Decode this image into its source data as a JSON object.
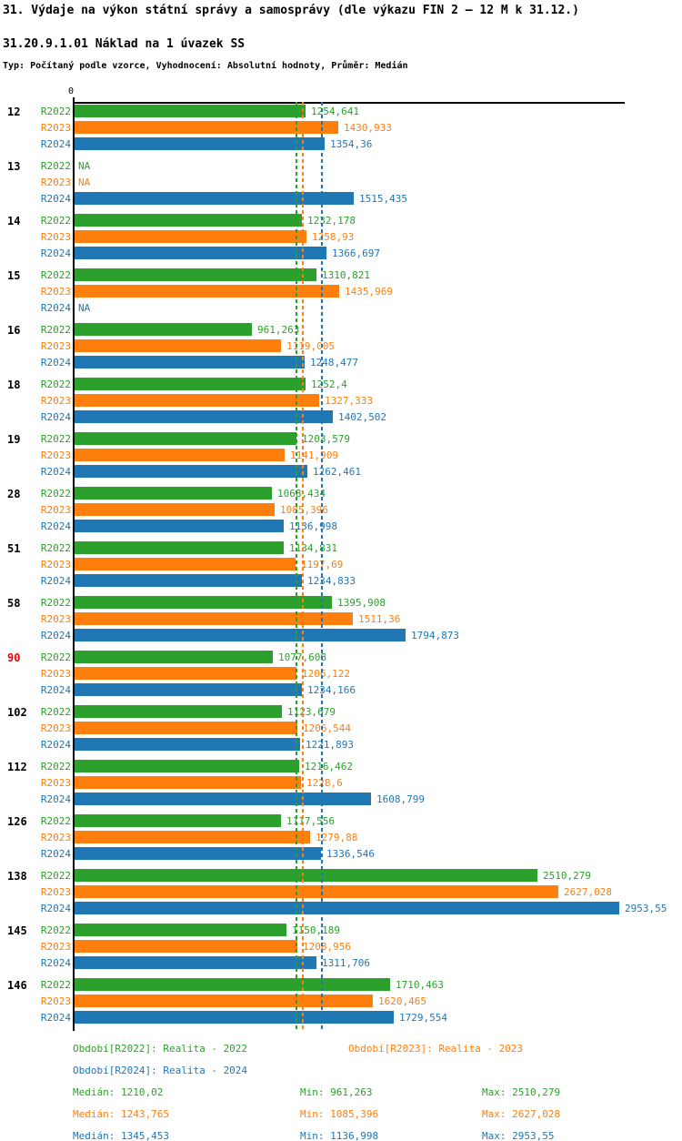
{
  "header": {
    "title": "31. Výdaje na výkon státní správy a samosprávy (dle výkazu FIN 2 – 12 M k 31.12.)",
    "subtitle": "31.20.9.1.01 Náklad na 1 úvazek SS",
    "type_line": "Typ: Počítaný podle vzorce, Vyhodnocení: Absolutní hodnoty, Průměr: Medián"
  },
  "colors": {
    "R2022": "#2ca02c",
    "R2023": "#ff7f0e",
    "R2024": "#1f77b4",
    "highlight_category": "#ee0000",
    "axis": "#000000"
  },
  "axis": {
    "zero_label": "0"
  },
  "chart_data": {
    "type": "bar",
    "orientation": "horizontal",
    "grouped": true,
    "title": "31.20.9.1.01 Náklad na 1 úvazek SS",
    "xlabel": "",
    "ylabel": "",
    "xlim": [
      0,
      2988
    ],
    "grid": false,
    "categories": [
      "12",
      "13",
      "14",
      "15",
      "16",
      "18",
      "19",
      "28",
      "51",
      "58",
      "90",
      "102",
      "112",
      "126",
      "138",
      "145",
      "146"
    ],
    "highlighted_category": "90",
    "series": [
      {
        "name": "R2022",
        "display": [
          "1254,641",
          "NA",
          "1232,178",
          "1310,821",
          "961,263",
          "1252,4",
          "1203,579",
          "1068,434",
          "1134,831",
          "1395,908",
          "1077,608",
          "1123,679",
          "1216,462",
          "1117,556",
          "2510,279",
          "1150,189",
          "1710,463"
        ],
        "values": [
          1254.641,
          null,
          1232.178,
          1310.821,
          961.263,
          1252.4,
          1203.579,
          1068.434,
          1134.831,
          1395.908,
          1077.608,
          1123.679,
          1216.462,
          1117.556,
          2510.279,
          1150.189,
          1710.463
        ]
      },
      {
        "name": "R2023",
        "display": [
          "1430,933",
          "NA",
          "1258,93",
          "1435,969",
          "1119,005",
          "1327,333",
          "1141,909",
          "1085,396",
          "1197,69",
          "1511,36",
          "1206,122",
          "1206,544",
          "1228,6",
          "1279,88",
          "2627,028",
          "1208,956",
          "1620,465"
        ],
        "values": [
          1430.933,
          null,
          1258.93,
          1435.969,
          1119.005,
          1327.333,
          1141.909,
          1085.396,
          1197.69,
          1511.36,
          1206.122,
          1206.544,
          1228.6,
          1279.88,
          2627.028,
          1208.956,
          1620.465
        ]
      },
      {
        "name": "R2024",
        "display": [
          "1354,36",
          "1515,435",
          "1366,697",
          "NA",
          "1248,477",
          "1402,502",
          "1262,461",
          "1136,998",
          "1234,833",
          "1794,873",
          "1234,166",
          "1221,893",
          "1608,799",
          "1336,546",
          "2953,55",
          "1311,706",
          "1729,554"
        ],
        "values": [
          1354.36,
          1515.435,
          1366.697,
          null,
          1248.477,
          1402.502,
          1262.461,
          1136.998,
          1234.833,
          1794.873,
          1234.166,
          1221.893,
          1608.799,
          1336.546,
          2953.55,
          1311.706,
          1729.554
        ]
      }
    ],
    "median_lines": [
      {
        "series": "R2022",
        "value": 1210.02
      },
      {
        "series": "R2023",
        "value": 1243.765
      },
      {
        "series": "R2024",
        "value": 1345.453
      }
    ]
  },
  "legend": {
    "periods": [
      {
        "series": "R2022",
        "label": "Období[R2022]: Realita - 2022"
      },
      {
        "series": "R2023",
        "label": "Období[R2023]: Realita - 2023"
      },
      {
        "series": "R2024",
        "label": "Období[R2024]: Realita - 2024"
      }
    ],
    "stats": [
      {
        "series": "R2022",
        "median": "Medián: 1210,02",
        "min": "Min: 961,263",
        "max": "Max: 2510,279"
      },
      {
        "series": "R2023",
        "median": "Medián: 1243,765",
        "min": "Min: 1085,396",
        "max": "Max: 2627,028"
      },
      {
        "series": "R2024",
        "median": "Medián: 1345,453",
        "min": "Min: 1136,998",
        "max": "Max: 2953,55"
      }
    ]
  }
}
